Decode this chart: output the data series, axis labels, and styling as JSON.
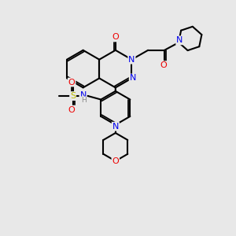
{
  "background_color": "#e8e8e8",
  "figsize": [
    3.0,
    3.0
  ],
  "dpi": 100,
  "bond_color": "#000000",
  "bond_width": 1.5,
  "colors": {
    "C": "#000000",
    "N": "#0000ee",
    "O": "#ee0000",
    "S": "#bbbb00",
    "H": "#888888"
  }
}
